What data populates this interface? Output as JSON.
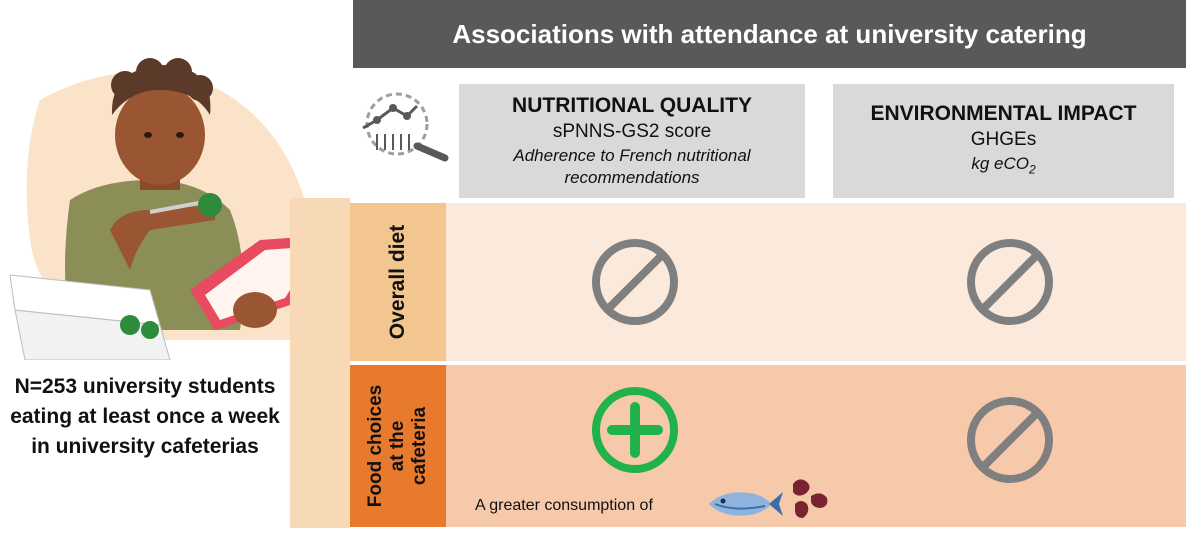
{
  "title": "Associations with attendance at university catering",
  "columns": [
    {
      "title": "NUTRITIONAL QUALITY",
      "subtitle": "sPNNS-GS2 score",
      "note": "Adherence to French nutritional recommendations"
    },
    {
      "title": "ENVIRONMENTAL IMPACT",
      "subtitle": "GHGEs",
      "note_main": "kg eCO",
      "note_sub": "2"
    }
  ],
  "rows": [
    {
      "label": "Overall diet",
      "cells": [
        "no-association",
        "no-association"
      ]
    },
    {
      "label_line1": "Food choices",
      "label_line2": "at the",
      "label_line3": "cafeteria",
      "cells": [
        "positive-association",
        "no-association"
      ]
    }
  ],
  "consumption_text": "A greater consumption of",
  "caption": "N=253 university students eating at least once a week in university cafeterias",
  "icons": [
    "magnifier-data-icon",
    "student-illustration",
    "fish-icon",
    "beans-icon",
    "no-association-icon",
    "positive-association-icon"
  ],
  "colors": {
    "banner": "#595959",
    "header": "#d9d9d9",
    "overall_row": "#fbeadb",
    "food_row": "#f5c9a9",
    "food_tab": "#e87a2e",
    "overall_tab": "#f3c58f",
    "no_association": "#7f7f7f",
    "positive": "#22b24c"
  }
}
